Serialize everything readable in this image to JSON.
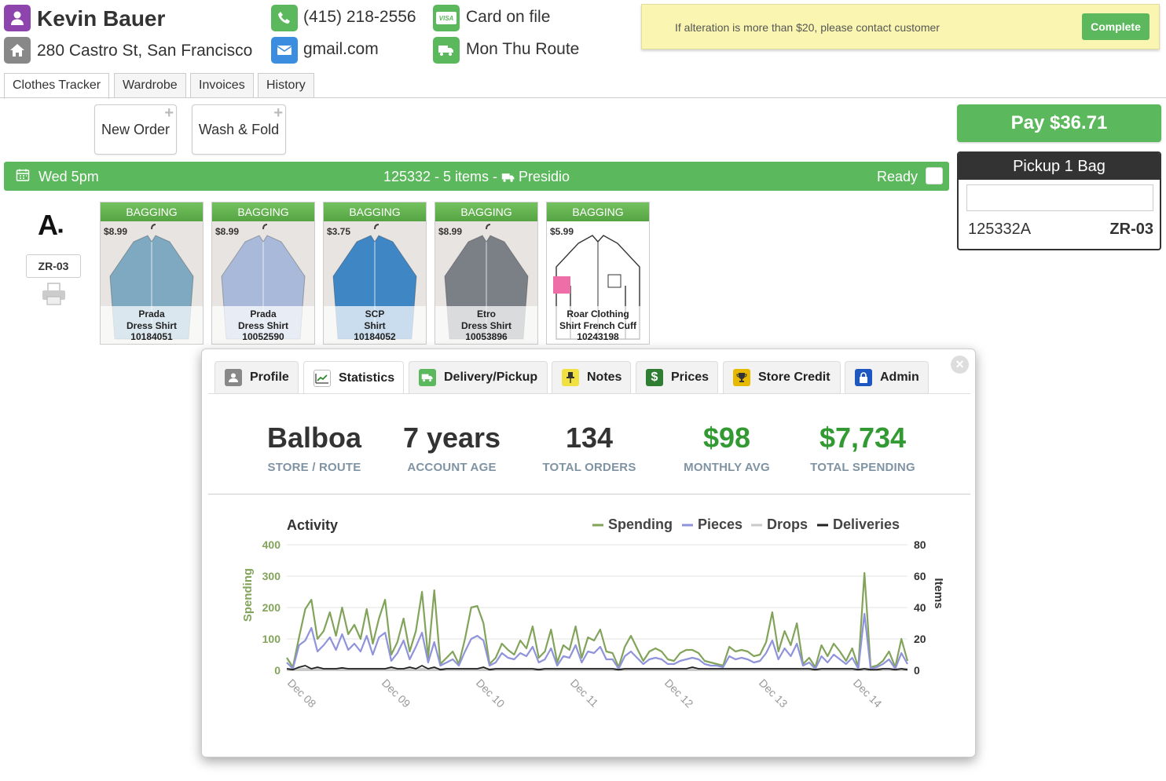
{
  "customer": {
    "name": "Kevin Bauer",
    "address": "280 Castro St, San Francisco",
    "phone": "(415) 218-2556",
    "email": "gmail.com",
    "payment": "Card on file",
    "route": "Mon Thu Route",
    "card_brand": "VISA"
  },
  "notice": {
    "text": "If alteration is more than $20, please contact customer",
    "button": "Complete"
  },
  "tabs": [
    "Clothes Tracker",
    "Wardrobe",
    "Invoices",
    "History"
  ],
  "order_buttons": [
    "New Order",
    "Wash & Fold"
  ],
  "pay_button": "Pay $36.71",
  "pickup": {
    "title": "Pickup 1 Bag",
    "input_value": "",
    "code": "125332A",
    "zone": "ZR-03"
  },
  "order_bar": {
    "time": "Wed 5pm",
    "summary": "125332 - 5 items - ",
    "location": "Presidio",
    "status": "Ready"
  },
  "tag": {
    "zone": "ZR-03",
    "letter": "A"
  },
  "items": [
    {
      "status": "BAGGING",
      "price": "$8.99",
      "brand": "Prada",
      "type": "Dress Shirt",
      "id": "10184051",
      "color": "#7fa9c0"
    },
    {
      "status": "BAGGING",
      "price": "$8.99",
      "brand": "Prada",
      "type": "Dress Shirt",
      "id": "10052590",
      "color": "#a9b9d9"
    },
    {
      "status": "BAGGING",
      "price": "$3.75",
      "brand": "SCP",
      "type": "Shirt",
      "id": "10184052",
      "color": "#3f86c4"
    },
    {
      "status": "BAGGING",
      "price": "$8.99",
      "brand": "Etro",
      "type": "Dress Shirt",
      "id": "10053896",
      "color": "#7b7f86"
    },
    {
      "status": "BAGGING",
      "price": "$5.99",
      "brand": "Roar Clothing",
      "type": "Shirt French Cuff",
      "id": "10243198",
      "color": "#ffffff"
    }
  ],
  "modal": {
    "tabs": [
      {
        "label": "Profile",
        "icon": "user-icon",
        "icon_color": "#888888"
      },
      {
        "label": "Statistics",
        "icon": "chart-icon",
        "icon_color": "#ffffff"
      },
      {
        "label": "Delivery/Pickup",
        "icon": "truck-icon",
        "icon_color": "#5cb85c"
      },
      {
        "label": "Notes",
        "icon": "pin-icon",
        "icon_color": "#f0e040"
      },
      {
        "label": "Prices",
        "icon": "dollar-icon",
        "icon_color": "#2e7d32"
      },
      {
        "label": "Store Credit",
        "icon": "trophy-icon",
        "icon_color": "#e6b800"
      },
      {
        "label": "Admin",
        "icon": "lock-icon",
        "icon_color": "#1e57c0"
      }
    ],
    "close": "×",
    "stats": [
      {
        "value": "Balboa",
        "label": "STORE / ROUTE",
        "highlight": false
      },
      {
        "value": "7 years",
        "label": "ACCOUNT AGE",
        "highlight": false
      },
      {
        "value": "134",
        "label": "TOTAL ORDERS",
        "highlight": false
      },
      {
        "value": "$98",
        "label": "MONTHLY AVG",
        "highlight": true
      },
      {
        "value": "$7,734",
        "label": "TOTAL SPENDING",
        "highlight": true
      }
    ]
  },
  "chart_data": {
    "type": "line",
    "title": "Activity",
    "ylabel": "Spending",
    "y2label": "Items",
    "ylim": [
      0,
      400
    ],
    "y2lim": [
      0,
      80
    ],
    "yticks": [
      "400",
      "300",
      "200",
      "100",
      "0"
    ],
    "y2ticks": [
      "80",
      "60",
      "40",
      "20",
      "0"
    ],
    "xticks": [
      "Dec 08",
      "Dec 09",
      "Dec 10",
      "Dec 11",
      "Dec 12",
      "Dec 13",
      "Dec 14"
    ],
    "legend_position": "top-right",
    "grid": true,
    "series": [
      {
        "name": "Spending",
        "axis": "left",
        "color": "#82a35a",
        "values": [
          40,
          10,
          105,
          195,
          225,
          100,
          125,
          185,
          110,
          200,
          115,
          145,
          100,
          195,
          85,
          165,
          225,
          50,
          90,
          165,
          60,
          125,
          250,
          40,
          255,
          20,
          40,
          60,
          20,
          100,
          200,
          205,
          150,
          20,
          40,
          85,
          65,
          50,
          95,
          70,
          140,
          40,
          60,
          130,
          25,
          80,
          65,
          140,
          40,
          105,
          95,
          130,
          60,
          55,
          10,
          75,
          110,
          70,
          30,
          60,
          70,
          60,
          35,
          30,
          55,
          65,
          65,
          55,
          30,
          25,
          20,
          15,
          75,
          60,
          65,
          60,
          45,
          50,
          90,
          185,
          60,
          125,
          80,
          150,
          20,
          40,
          10,
          80,
          45,
          85,
          60,
          30,
          70,
          10,
          310,
          10,
          15,
          30,
          60,
          10,
          100,
          30
        ]
      },
      {
        "name": "Pieces",
        "axis": "left",
        "color": "#8f93da",
        "values": [
          25,
          5,
          80,
          95,
          135,
          60,
          80,
          105,
          65,
          115,
          65,
          85,
          60,
          110,
          50,
          105,
          120,
          30,
          55,
          95,
          35,
          75,
          120,
          25,
          90,
          15,
          25,
          35,
          15,
          60,
          100,
          110,
          95,
          15,
          25,
          55,
          40,
          35,
          55,
          45,
          75,
          25,
          35,
          70,
          15,
          45,
          40,
          80,
          25,
          60,
          55,
          75,
          35,
          35,
          5,
          45,
          60,
          40,
          20,
          35,
          40,
          35,
          20,
          20,
          30,
          35,
          40,
          35,
          20,
          15,
          15,
          10,
          45,
          35,
          40,
          35,
          25,
          30,
          55,
          95,
          35,
          70,
          45,
          85,
          15,
          25,
          5,
          45,
          25,
          50,
          35,
          20,
          40,
          5,
          180,
          5,
          10,
          20,
          35,
          5,
          55,
          20
        ]
      },
      {
        "name": "Drops",
        "axis": "left",
        "color": "#c9c9c9",
        "values": [
          5,
          5,
          5,
          5,
          5,
          5,
          5,
          5,
          5,
          5,
          5,
          5,
          5,
          5,
          5,
          5,
          5,
          5,
          5,
          5,
          5,
          5,
          5,
          5,
          5,
          5,
          5,
          5,
          5,
          5,
          5,
          5,
          5,
          5,
          5,
          5,
          5,
          5,
          5,
          5,
          5,
          5,
          5,
          5,
          5,
          5,
          5,
          5,
          5,
          5,
          5,
          5,
          5,
          5,
          5,
          5,
          5,
          5,
          5,
          5,
          5,
          5,
          5,
          5,
          5,
          5,
          5,
          5,
          5,
          5,
          5,
          5,
          5,
          5,
          5,
          5,
          5,
          5,
          5,
          5,
          5,
          5,
          5,
          5,
          5,
          5,
          5,
          5,
          5,
          5,
          5,
          5,
          5,
          5,
          5,
          5,
          5,
          5,
          5,
          5,
          5,
          5
        ]
      },
      {
        "name": "Deliveries",
        "axis": "left",
        "color": "#222222",
        "values": [
          5,
          2,
          10,
          15,
          5,
          10,
          5,
          5,
          5,
          8,
          5,
          5,
          5,
          5,
          5,
          5,
          5,
          10,
          5,
          5,
          10,
          5,
          15,
          5,
          10,
          2,
          5,
          5,
          5,
          5,
          5,
          5,
          10,
          2,
          5,
          5,
          5,
          5,
          5,
          5,
          5,
          2,
          5,
          5,
          5,
          5,
          5,
          5,
          5,
          5,
          5,
          5,
          5,
          5,
          2,
          5,
          5,
          5,
          5,
          5,
          5,
          5,
          5,
          5,
          5,
          5,
          10,
          5,
          5,
          5,
          5,
          5,
          5,
          5,
          5,
          5,
          5,
          5,
          5,
          5,
          5,
          5,
          5,
          5,
          5,
          5,
          2,
          5,
          5,
          5,
          5,
          5,
          5,
          2,
          5,
          2,
          2,
          5,
          5,
          2,
          5,
          2
        ]
      }
    ]
  }
}
